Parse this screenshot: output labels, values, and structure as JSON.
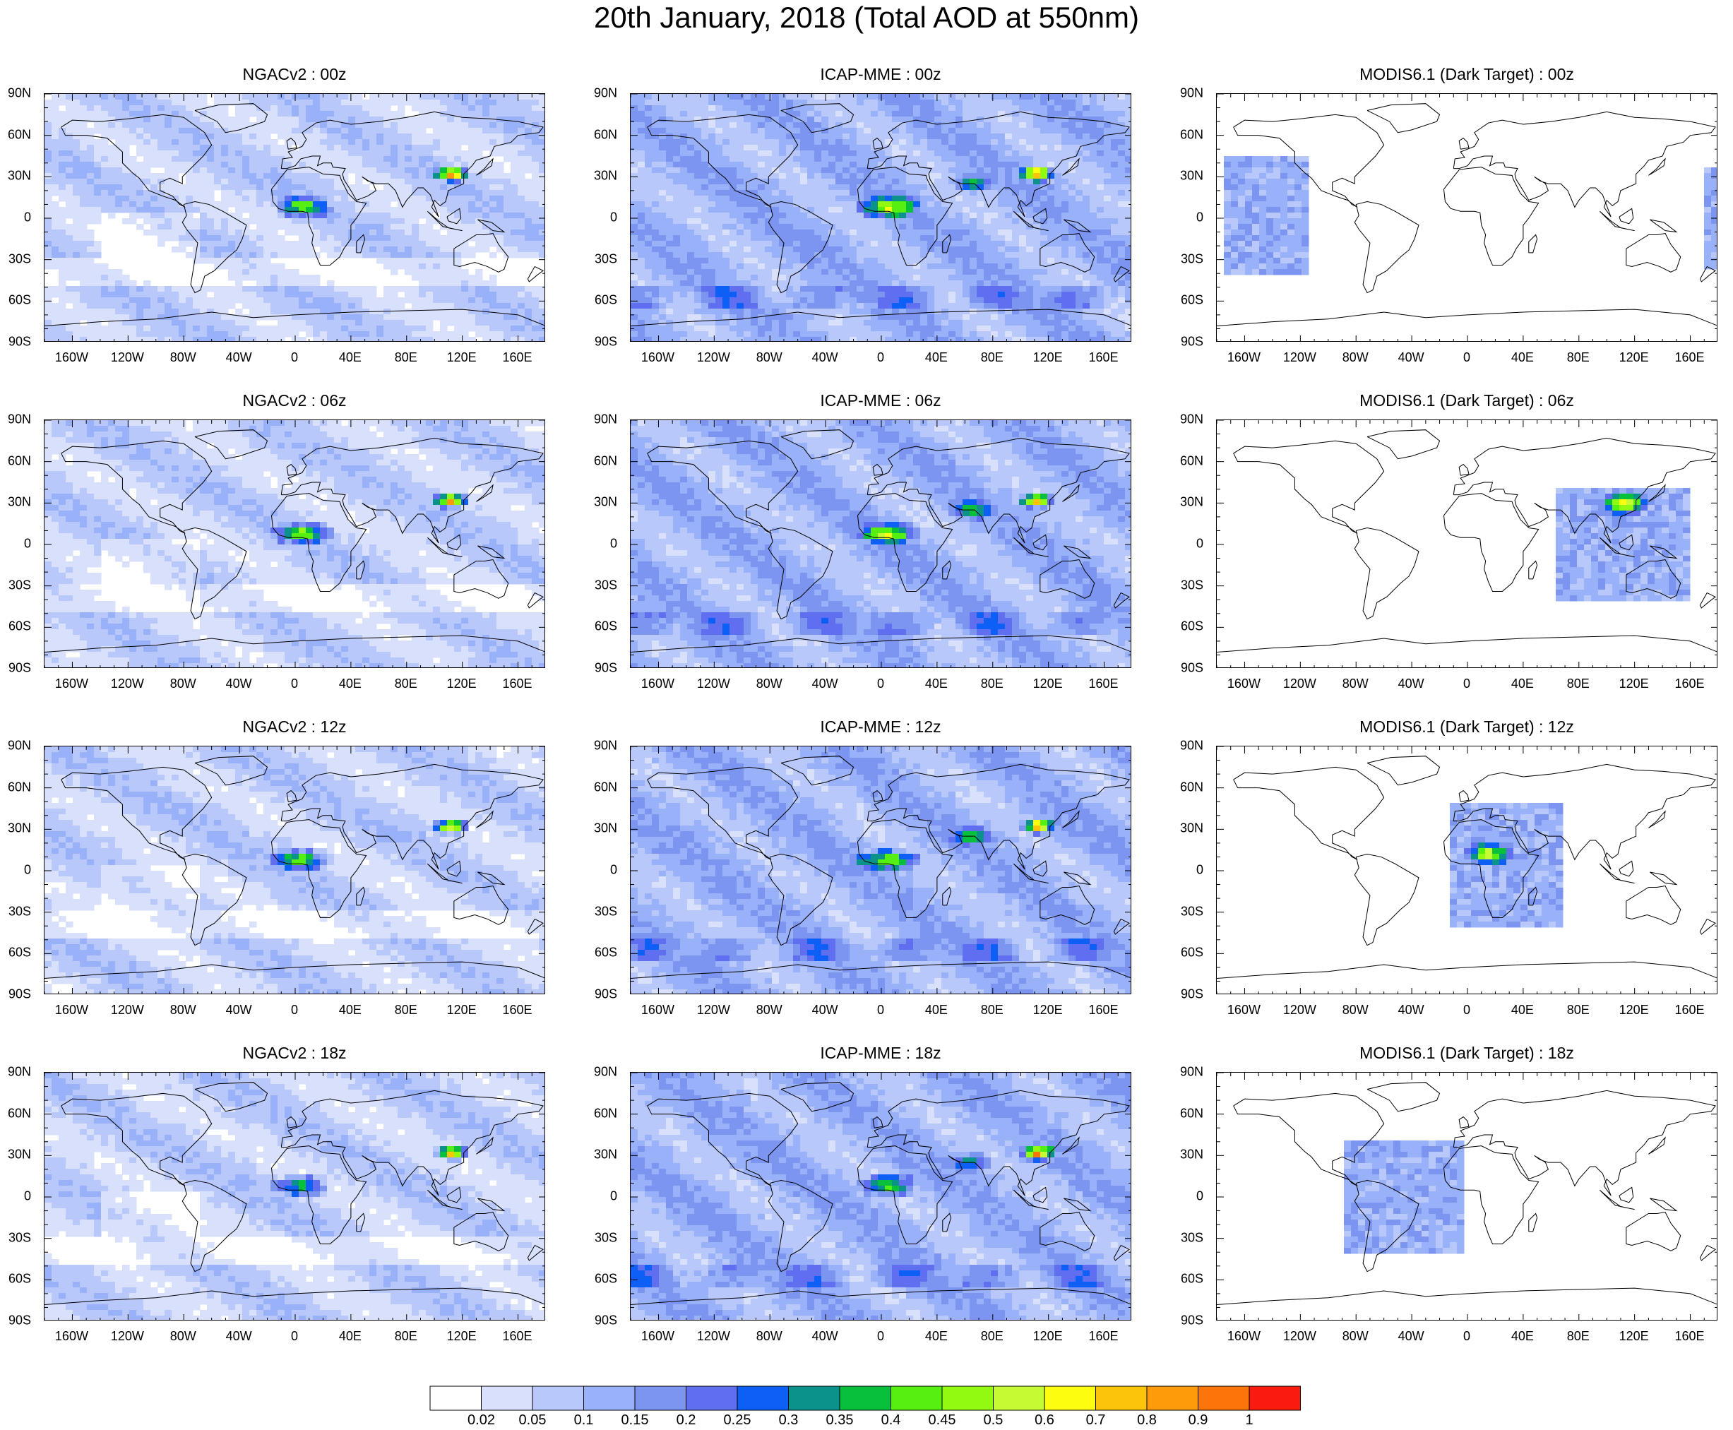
{
  "figure": {
    "title": "20th January, 2018 (Total AOD at 550nm)"
  },
  "axes": {
    "lat_labels": [
      "90N",
      "60N",
      "30N",
      "0",
      "30S",
      "60S",
      "90S"
    ],
    "lat_values": [
      90,
      60,
      30,
      0,
      -30,
      -60,
      -90
    ],
    "lon_labels": [
      "160W",
      "120W",
      "80W",
      "40W",
      "0",
      "40E",
      "80E",
      "120E",
      "160E"
    ],
    "lon_values": [
      -160,
      -120,
      -80,
      -40,
      0,
      40,
      80,
      120,
      160
    ],
    "lon_range": [
      -180,
      180
    ],
    "lat_range": [
      -90,
      90
    ]
  },
  "panels": [
    {
      "title": "NGACv2 : 00z",
      "source": "ngac",
      "hour": "00z"
    },
    {
      "title": "ICAP-MME : 00z",
      "source": "icap",
      "hour": "00z"
    },
    {
      "title": "MODIS6.1 (Dark Target) : 00z",
      "source": "modis",
      "hour": "00z"
    },
    {
      "title": "NGACv2 : 06z",
      "source": "ngac",
      "hour": "06z"
    },
    {
      "title": "ICAP-MME : 06z",
      "source": "icap",
      "hour": "06z"
    },
    {
      "title": "MODIS6.1 (Dark Target) : 06z",
      "source": "modis",
      "hour": "06z"
    },
    {
      "title": "NGACv2 : 12z",
      "source": "ngac",
      "hour": "12z"
    },
    {
      "title": "ICAP-MME : 12z",
      "source": "icap",
      "hour": "12z"
    },
    {
      "title": "MODIS6.1 (Dark Target) : 12z",
      "source": "modis",
      "hour": "12z"
    },
    {
      "title": "NGACv2 : 18z",
      "source": "ngac",
      "hour": "18z"
    },
    {
      "title": "ICAP-MME : 18z",
      "source": "icap",
      "hour": "18z"
    },
    {
      "title": "MODIS6.1 (Dark Target) : 18z",
      "source": "modis",
      "hour": "18z"
    }
  ],
  "colorbar": {
    "labels": [
      "0.02",
      "0.05",
      "0.1",
      "0.15",
      "0.2",
      "0.25",
      "0.3",
      "0.35",
      "0.4",
      "0.45",
      "0.5",
      "0.6",
      "0.7",
      "0.8",
      "0.9",
      "1"
    ],
    "colors": [
      "#ffffff",
      "#d8e0fb",
      "#b9c8fa",
      "#99b1f9",
      "#7b95f1",
      "#5f6ff0",
      "#0e5ff6",
      "#0a928b",
      "#08c03b",
      "#56ef12",
      "#92fa11",
      "#c6fb33",
      "#fdfd0f",
      "#fdc40c",
      "#fd9b0b",
      "#fc7509",
      "#f91b10"
    ]
  },
  "map_features": {
    "ocean_hotspots": [
      {
        "lon": 105,
        "lat": 32,
        "level": 16,
        "r": 8
      },
      {
        "lon": 10,
        "lat": 8,
        "level": 11,
        "r": 14
      },
      {
        "lon": -10,
        "lat": 12,
        "level": 9,
        "r": 10
      }
    ]
  }
}
